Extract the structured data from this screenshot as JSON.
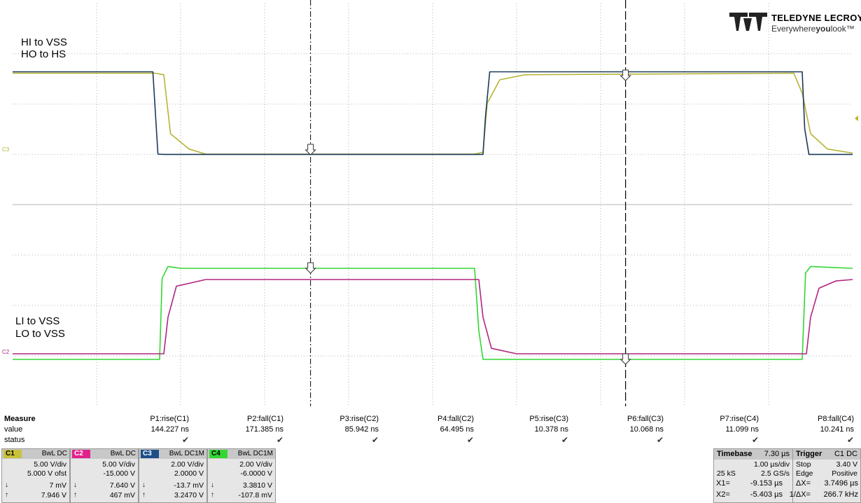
{
  "labels": {
    "upper": [
      "HI to VSS",
      "HO to HS"
    ],
    "lower": [
      "LI to VSS",
      "LO to VSS"
    ],
    "marker_c3": "C3",
    "marker_c2": "C2"
  },
  "logo": {
    "name": "TELEDYNE LECROY",
    "tag_a": "Everywhere",
    "tag_b": "you",
    "tag_c": "look",
    "tm": "™"
  },
  "colors": {
    "C1": "#b7b436",
    "C2": "#b0267f",
    "C3": "#1a3a5a",
    "C4": "#33d633",
    "grid": "#a0a0a0"
  },
  "measure": {
    "title": "Measure",
    "row_value": "value",
    "row_status": "status",
    "params": [
      {
        "name": "P1:rise(C1)",
        "value": "144.227 ns",
        "status": "✔"
      },
      {
        "name": "P2:fall(C1)",
        "value": "171.385 ns",
        "status": "✔"
      },
      {
        "name": "P3:rise(C2)",
        "value": "85.942 ns",
        "status": "✔"
      },
      {
        "name": "P4:fall(C2)",
        "value": "64.495 ns",
        "status": "✔"
      },
      {
        "name": "P5:rise(C3)",
        "value": "10.378 ns",
        "status": "✔"
      },
      {
        "name": "P6:fall(C3)",
        "value": "10.068 ns",
        "status": "✔"
      },
      {
        "name": "P7:rise(C4)",
        "value": "11.099 ns",
        "status": "✔"
      },
      {
        "name": "P8:fall(C4)",
        "value": "10.241 ns",
        "status": "✔"
      }
    ]
  },
  "channels": [
    {
      "id": "C1",
      "coupling": "BwL DC",
      "vdiv": "5.00 V/div",
      "offset": "5.000 V ofst",
      "low": "7 mV",
      "high": "7.946 V",
      "color": "#c8c23a",
      "text": "#000"
    },
    {
      "id": "C2",
      "coupling": "BwL DC",
      "vdiv": "5.00 V/div",
      "offset": "-15.000 V",
      "low": "7.640 V",
      "high": "467 mV",
      "color": "#e0228c",
      "text": "#fff"
    },
    {
      "id": "C3",
      "coupling": "BwL DC1M",
      "vdiv": "2.00 V/div",
      "offset": "2.0000 V",
      "low": "-13.7 mV",
      "high": "3.2470 V",
      "color": "#1d4e8a",
      "text": "#fff"
    },
    {
      "id": "C4",
      "coupling": "BwL DC1M",
      "vdiv": "2.00 V/div",
      "offset": "-6.0000 V",
      "low": "3.3810 V",
      "high": "-107.8 mV",
      "color": "#33d633",
      "text": "#000"
    }
  ],
  "timebase": {
    "title": "Timebase",
    "delay": "7.30 µs",
    "tdiv": "1.00 µs/div",
    "samples": "25 kS",
    "rate": "2.5 GS/s"
  },
  "trigger": {
    "title": "Trigger",
    "source": "C1 DC",
    "mode": "Stop",
    "level": "3.40 V",
    "type": "Edge",
    "slope": "Positive"
  },
  "cursors": {
    "x1_label": "X1=",
    "x1": "-9.153 µs",
    "dx_label": "ΔX=",
    "dx": "3.7496 µs",
    "x2_label": "X2=",
    "x2": "-5.403 µs",
    "inv_label": "1/ΔX=",
    "inv": "266.7 kHz"
  },
  "chart_data": {
    "type": "line",
    "x_unit": "µs",
    "time_div": 1.0,
    "divisions": 10,
    "xlim": [
      -12.7,
      -2.7
    ],
    "cursors_x": [
      -9.153,
      -5.403
    ],
    "series": [
      {
        "name": "C1",
        "grid": "upper",
        "x": [
          -12.7,
          -11.0,
          -10.9,
          -10.82,
          -10.6,
          -10.4,
          -7.2,
          -7.1,
          -7.05,
          -6.9,
          -6.6,
          -3.4,
          -3.3,
          -3.2,
          -3.0,
          -2.7
        ],
        "y": [
          7.95,
          7.95,
          7.8,
          2.0,
          0.5,
          0.0,
          0.0,
          0.2,
          5.0,
          7.3,
          7.8,
          7.95,
          6.0,
          2.0,
          0.5,
          0.1
        ]
      },
      {
        "name": "C3",
        "grid": "upper",
        "x": [
          -12.7,
          -11.03,
          -10.97,
          -10.9,
          -7.1,
          -7.07,
          -7.02,
          -3.3,
          -3.27,
          -3.22,
          -2.7
        ],
        "y": [
          3.25,
          3.25,
          0.0,
          -0.01,
          -0.01,
          1.5,
          3.25,
          3.25,
          1.0,
          -0.01,
          -0.01
        ]
      },
      {
        "name": "C4",
        "grid": "lower",
        "x": [
          -12.7,
          -10.95,
          -10.92,
          -10.85,
          -10.7,
          -7.2,
          -7.15,
          -7.1,
          -6.8,
          -3.3,
          -3.26,
          -3.2,
          -2.7
        ],
        "y": [
          -0.11,
          -0.11,
          3.0,
          3.45,
          3.38,
          3.38,
          1.0,
          -0.11,
          -0.11,
          -0.11,
          3.2,
          3.45,
          3.38
        ]
      },
      {
        "name": "C2",
        "grid": "lower",
        "x": [
          -12.7,
          -10.9,
          -10.85,
          -10.75,
          -10.4,
          -7.15,
          -7.1,
          -7.0,
          -6.7,
          -3.25,
          -3.2,
          -3.1,
          -2.9,
          -2.7
        ],
        "y": [
          0.47,
          0.47,
          4.0,
          7.0,
          7.64,
          7.64,
          4.0,
          1.0,
          0.47,
          0.47,
          4.0,
          6.8,
          7.5,
          7.64
        ]
      }
    ]
  }
}
